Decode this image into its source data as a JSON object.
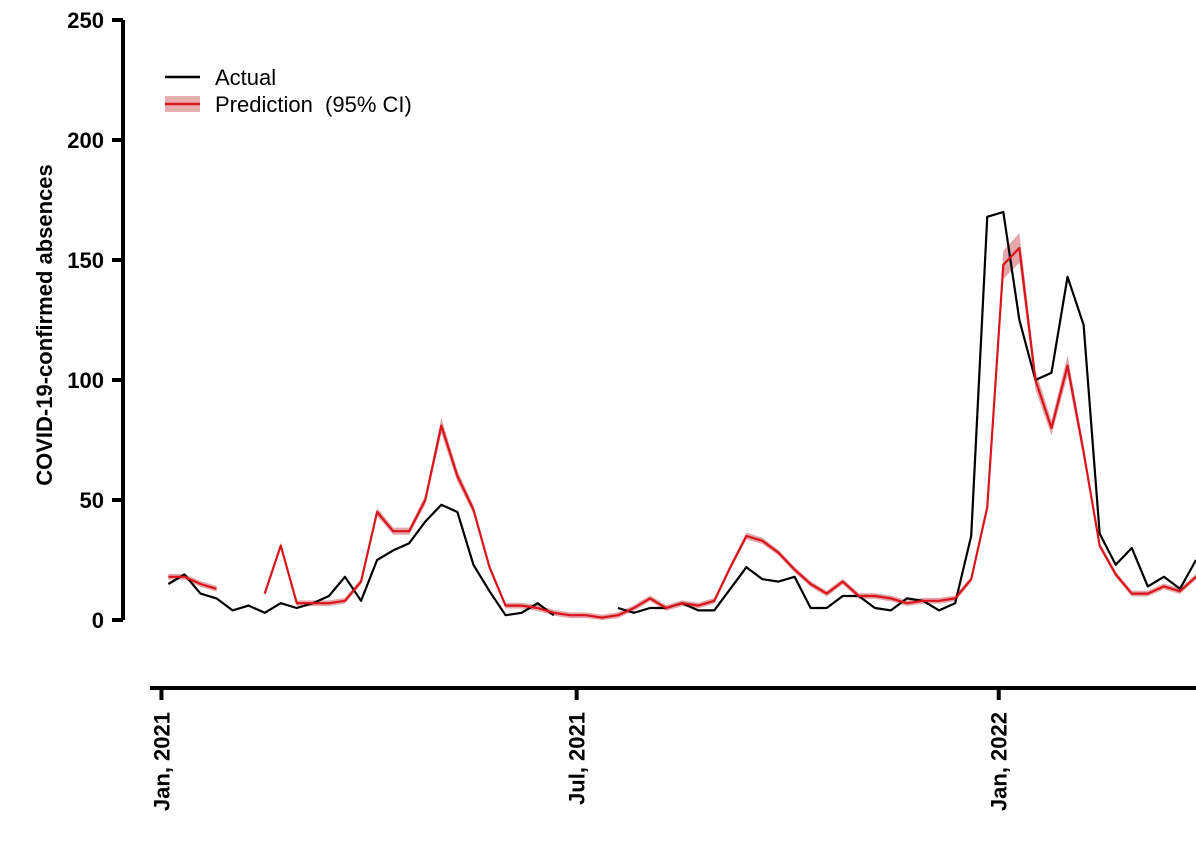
{
  "chart_data": {
    "type": "line",
    "title": "",
    "ylabel": "COVID-19-confirmed absences",
    "xlabel": "",
    "ylim": [
      0,
      250
    ],
    "yticks": [
      0,
      50,
      100,
      150,
      200,
      250
    ],
    "xticks": [
      {
        "date": "2021-01-01",
        "label": "Jan, 2021"
      },
      {
        "date": "2021-07-01",
        "label": "Jul, 2021"
      },
      {
        "date": "2022-01-01",
        "label": "Jan, 2022"
      }
    ],
    "xlim": [
      "2020-12-27",
      "2022-03-28"
    ],
    "legend_position": "top-left",
    "grid": false,
    "colors": {
      "actual": "#000000",
      "prediction": "#d9141b",
      "band": "#d98a8e"
    },
    "series": [
      {
        "name": "Actual",
        "key": "actual",
        "segments": [
          [
            [
              "2021-01-04",
              15
            ],
            [
              "2021-01-11",
              19
            ],
            [
              "2021-01-18",
              11
            ],
            [
              "2021-01-25",
              9
            ],
            [
              "2021-02-01",
              4
            ],
            [
              "2021-02-08",
              6
            ],
            [
              "2021-02-15",
              3
            ],
            [
              "2021-02-22",
              7
            ],
            [
              "2021-03-01",
              5
            ],
            [
              "2021-03-08",
              7
            ],
            [
              "2021-03-15",
              10
            ],
            [
              "2021-03-22",
              18
            ],
            [
              "2021-03-29",
              8
            ],
            [
              "2021-04-05",
              25
            ],
            [
              "2021-04-12",
              29
            ],
            [
              "2021-04-19",
              32
            ],
            [
              "2021-04-26",
              41
            ],
            [
              "2021-05-03",
              48
            ],
            [
              "2021-05-10",
              45
            ],
            [
              "2021-05-17",
              23
            ],
            [
              "2021-05-24",
              12
            ],
            [
              "2021-05-31",
              2
            ],
            [
              "2021-06-07",
              3
            ],
            [
              "2021-06-14",
              7
            ],
            [
              "2021-06-21",
              2
            ]
          ],
          [
            [
              "2021-07-19",
              5
            ],
            [
              "2021-07-26",
              3
            ],
            [
              "2021-08-02",
              5
            ],
            [
              "2021-08-09",
              5
            ],
            [
              "2021-08-16",
              7
            ],
            [
              "2021-08-23",
              4
            ],
            [
              "2021-08-30",
              4
            ],
            [
              "2021-09-06",
              13
            ],
            [
              "2021-09-13",
              22
            ],
            [
              "2021-09-20",
              17
            ],
            [
              "2021-09-27",
              16
            ],
            [
              "2021-10-04",
              18
            ],
            [
              "2021-10-11",
              5
            ],
            [
              "2021-10-18",
              5
            ],
            [
              "2021-10-25",
              10
            ],
            [
              "2021-11-01",
              10
            ],
            [
              "2021-11-08",
              5
            ],
            [
              "2021-11-15",
              4
            ],
            [
              "2021-11-22",
              9
            ],
            [
              "2021-11-29",
              8
            ],
            [
              "2021-12-06",
              4
            ],
            [
              "2021-12-13",
              7
            ],
            [
              "2021-12-20",
              35
            ],
            [
              "2021-12-27",
              168
            ],
            [
              "2022-01-03",
              170
            ],
            [
              "2022-01-10",
              125
            ],
            [
              "2022-01-17",
              100
            ],
            [
              "2022-01-24",
              103
            ],
            [
              "2022-01-31",
              143
            ],
            [
              "2022-02-07",
              123
            ],
            [
              "2022-02-14",
              36
            ],
            [
              "2022-02-21",
              23
            ],
            [
              "2022-02-28",
              30
            ],
            [
              "2022-03-07",
              14
            ],
            [
              "2022-03-14",
              18
            ],
            [
              "2022-03-21",
              13
            ],
            [
              "2022-03-28",
              25
            ]
          ]
        ]
      },
      {
        "name": "Prediction  (95% CI)",
        "key": "prediction",
        "segments": [
          [
            [
              "2021-01-04",
              18
            ],
            [
              "2021-01-11",
              18
            ],
            [
              "2021-01-18",
              15
            ],
            [
              "2021-01-25",
              13
            ]
          ],
          [
            [
              "2021-02-15",
              11
            ],
            [
              "2021-02-22",
              31
            ],
            [
              "2021-03-01",
              7
            ],
            [
              "2021-03-08",
              7
            ],
            [
              "2021-03-15",
              7
            ],
            [
              "2021-03-22",
              8
            ],
            [
              "2021-03-29",
              16
            ],
            [
              "2021-04-05",
              45
            ],
            [
              "2021-04-12",
              37
            ],
            [
              "2021-04-19",
              37
            ],
            [
              "2021-04-26",
              50
            ],
            [
              "2021-05-03",
              81
            ],
            [
              "2021-05-10",
              60
            ],
            [
              "2021-05-17",
              46
            ],
            [
              "2021-05-24",
              22
            ],
            [
              "2021-05-31",
              6
            ],
            [
              "2021-06-07",
              6
            ],
            [
              "2021-06-14",
              5
            ],
            [
              "2021-06-21",
              3
            ],
            [
              "2021-06-28",
              2
            ],
            [
              "2021-07-05",
              2
            ],
            [
              "2021-07-12",
              1
            ],
            [
              "2021-07-19",
              2
            ],
            [
              "2021-07-26",
              5
            ],
            [
              "2021-08-02",
              9
            ],
            [
              "2021-08-09",
              5
            ],
            [
              "2021-08-16",
              7
            ],
            [
              "2021-08-23",
              6
            ],
            [
              "2021-08-30",
              8
            ],
            [
              "2021-09-06",
              22
            ],
            [
              "2021-09-13",
              35
            ],
            [
              "2021-09-20",
              33
            ],
            [
              "2021-09-27",
              28
            ],
            [
              "2021-10-04",
              21
            ],
            [
              "2021-10-11",
              15
            ],
            [
              "2021-10-18",
              11
            ],
            [
              "2021-10-25",
              16
            ],
            [
              "2021-11-01",
              10
            ],
            [
              "2021-11-08",
              10
            ],
            [
              "2021-11-15",
              9
            ],
            [
              "2021-11-22",
              7
            ],
            [
              "2021-11-29",
              8
            ],
            [
              "2021-12-06",
              8
            ],
            [
              "2021-12-13",
              9
            ],
            [
              "2021-12-20",
              17
            ],
            [
              "2021-12-27",
              47
            ],
            [
              "2022-01-03",
              148
            ],
            [
              "2022-01-10",
              155
            ],
            [
              "2022-01-17",
              100
            ],
            [
              "2022-01-24",
              80
            ],
            [
              "2022-01-31",
              106
            ],
            [
              "2022-02-07",
              70
            ],
            [
              "2022-02-14",
              31
            ],
            [
              "2022-02-21",
              19
            ],
            [
              "2022-02-28",
              11
            ],
            [
              "2022-03-07",
              11
            ],
            [
              "2022-03-14",
              14
            ],
            [
              "2022-03-21",
              12
            ],
            [
              "2022-03-28",
              18
            ]
          ]
        ]
      }
    ]
  }
}
